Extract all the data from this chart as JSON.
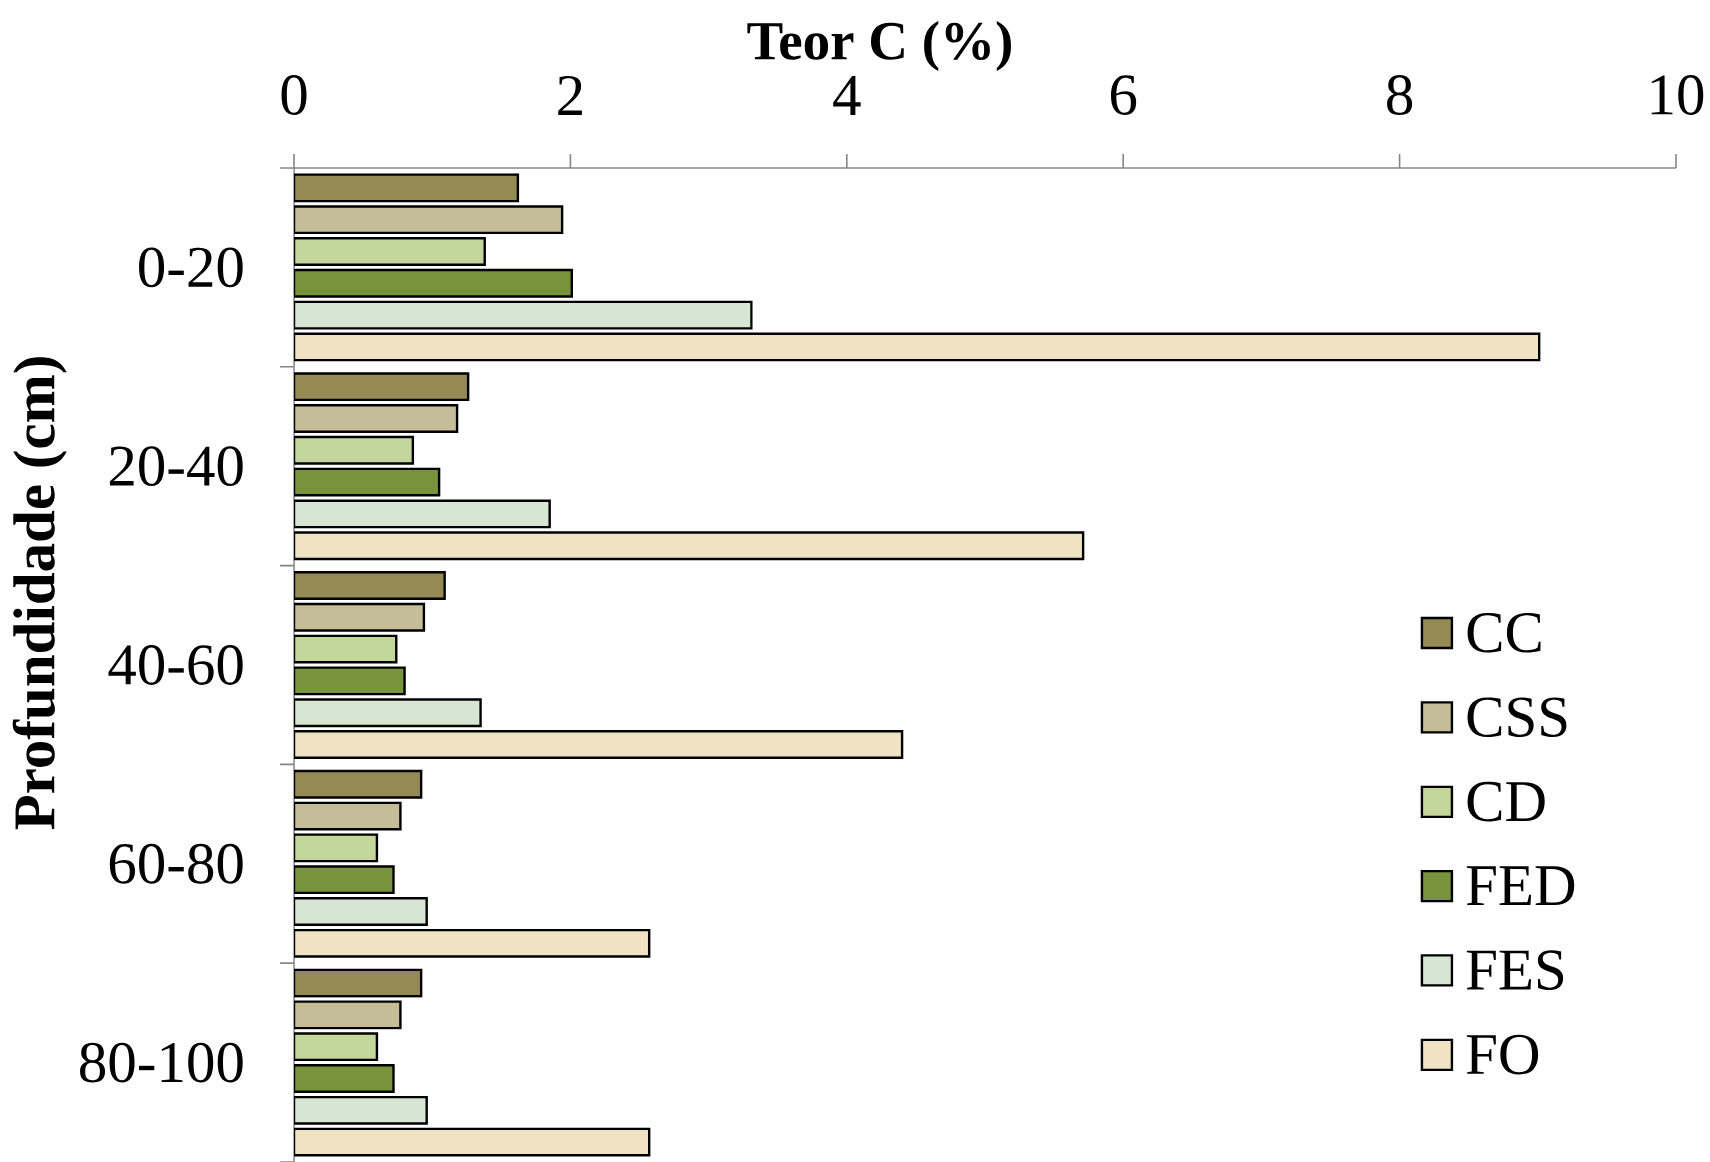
{
  "chart_data": {
    "type": "bar",
    "orientation": "horizontal",
    "xlabel": "Teor C (%)",
    "ylabel": "Profundidade (cm)",
    "categories": [
      "0-20",
      "20-40",
      "40-60",
      "60-80",
      "80-100"
    ],
    "xlim": [
      0,
      10
    ],
    "xticks": [
      0,
      2,
      4,
      6,
      8,
      10
    ],
    "legend": "right",
    "series": [
      {
        "name": "CC",
        "color": "#948a54",
        "values": [
          1.62,
          1.26,
          1.09,
          0.92,
          0.92
        ]
      },
      {
        "name": "CSS",
        "color": "#c4bd97",
        "values": [
          1.94,
          1.18,
          0.94,
          0.77,
          0.77
        ]
      },
      {
        "name": "CD",
        "color": "#c3d69b",
        "values": [
          1.38,
          0.86,
          0.74,
          0.6,
          0.6
        ]
      },
      {
        "name": "FED",
        "color": "#77933c",
        "values": [
          2.01,
          1.05,
          0.8,
          0.72,
          0.72
        ]
      },
      {
        "name": "FES",
        "color": "#d6e6d3",
        "values": [
          3.31,
          1.85,
          1.35,
          0.96,
          0.96
        ]
      },
      {
        "name": "FO",
        "color": "#efe3c3",
        "values": [
          9.01,
          5.71,
          4.4,
          2.57,
          2.57
        ]
      }
    ]
  }
}
